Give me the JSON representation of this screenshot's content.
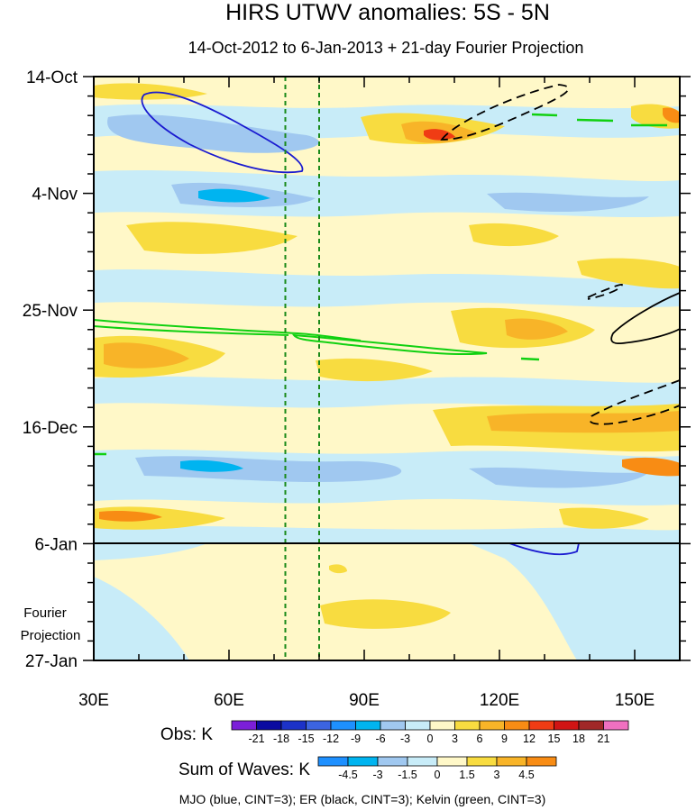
{
  "chart_data": {
    "type": "heatmap",
    "title": "HIRS UTWV anomalies: 5S - 5N",
    "subtitle": "14-Oct-2012 to 6-Jan-2013 + 21-day Fourier Projection",
    "x_axis": {
      "ticks": [
        30,
        60,
        90,
        120,
        150
      ],
      "tick_labels": [
        "30E",
        "60E",
        "90E",
        "120E",
        "150E"
      ],
      "range": [
        30,
        160
      ]
    },
    "y_axis": {
      "tick_labels": [
        "14-Oct",
        "4-Nov",
        "25-Nov",
        "16-Dec",
        "6-Jan",
        "27-Jan"
      ],
      "tick_day_offsets": [
        0,
        21,
        42,
        63,
        84,
        105
      ],
      "range_days": [
        0,
        105
      ],
      "inverted": true
    },
    "projection_start_label": "6-Jan",
    "projection_label_line1": "Fourier",
    "projection_label_line2": "Projection",
    "reference_lines_lon": [
      72.5,
      80
    ],
    "obs_colorbar": {
      "label": "Obs: K",
      "levels": [
        "-21",
        "-18",
        "-15",
        "-12",
        "-9",
        "-6",
        "-3",
        "0",
        "3",
        "6",
        "9",
        "12",
        "15",
        "18",
        "21"
      ],
      "colors": [
        "#7b1fd8",
        "#0a0aa0",
        "#1c32c8",
        "#3c64e0",
        "#1e90ff",
        "#00b4f0",
        "#a0c8f0",
        "#c8ecf8",
        "#fff8c8",
        "#f8dc40",
        "#f8b428",
        "#f88c14",
        "#f03c14",
        "#d01414",
        "#a02828",
        "#f070c0"
      ]
    },
    "waves_colorbar": {
      "label": "Sum of Waves: K",
      "levels": [
        "-4.5",
        "-3",
        "-1.5",
        "0",
        "1.5",
        "3",
        "4.5"
      ],
      "colors": [
        "#1e90ff",
        "#00b4f0",
        "#a0c8f0",
        "#c8ecf8",
        "#fff8c8",
        "#f8dc40",
        "#f8b428",
        "#f88c14"
      ]
    },
    "contour_legend": "MJO (blue, CINT=3); ER (black, CINT=3); Kelvin (green, CINT=3)",
    "series_colors": {
      "mjo": "#1a1ad0",
      "er": "#000000",
      "kelvin": "#10d010"
    }
  }
}
